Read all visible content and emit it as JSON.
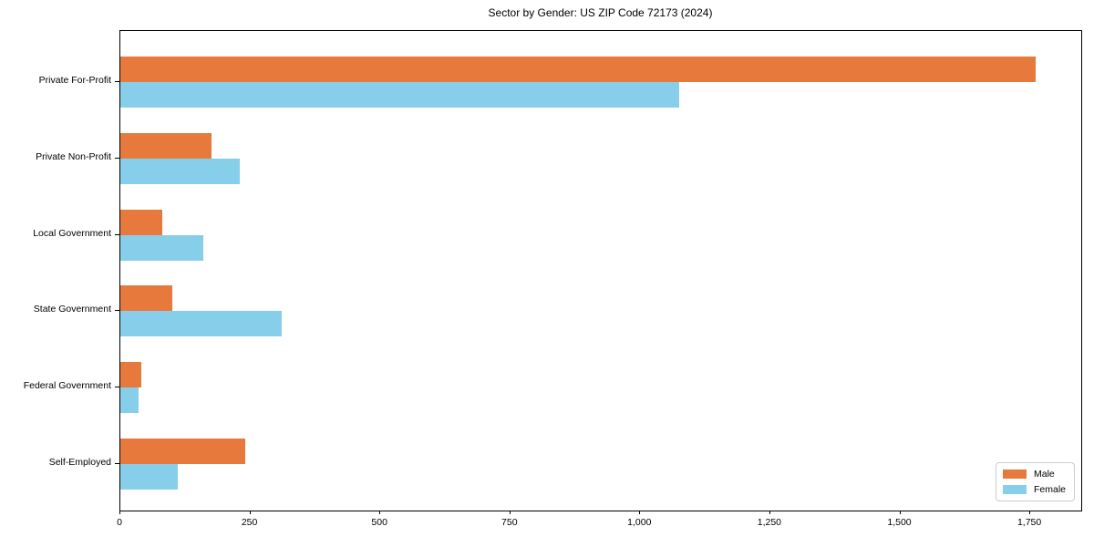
{
  "chart_data": {
    "type": "bar",
    "orientation": "horizontal",
    "title": "Sector by Gender: US ZIP Code 72173 (2024)",
    "categories": [
      "Private For-Profit",
      "Private Non-Profit",
      "Local Government",
      "State Government",
      "Federal Government",
      "Self-Employed"
    ],
    "series": [
      {
        "name": "Male",
        "color": "#e8793d",
        "values": [
          1760,
          175,
          80,
          100,
          40,
          240
        ]
      },
      {
        "name": "Female",
        "color": "#87ceeb",
        "values": [
          1075,
          230,
          160,
          310,
          35,
          110
        ]
      }
    ],
    "xlabel": "",
    "ylabel": "",
    "xlim": [
      0,
      1848
    ],
    "xticks": [
      0,
      250,
      500,
      750,
      1000,
      1250,
      1500,
      1750
    ],
    "xtick_labels": [
      "0",
      "250",
      "500",
      "750",
      "1,000",
      "1,250",
      "1,500",
      "1,750"
    ],
    "grid": false,
    "legend": {
      "position": "lower right",
      "entries": [
        "Male",
        "Female"
      ]
    },
    "colors": {
      "male": "#e8793d",
      "female": "#87ceeb",
      "spine": "#000000",
      "legend_border": "#cccccc"
    }
  }
}
